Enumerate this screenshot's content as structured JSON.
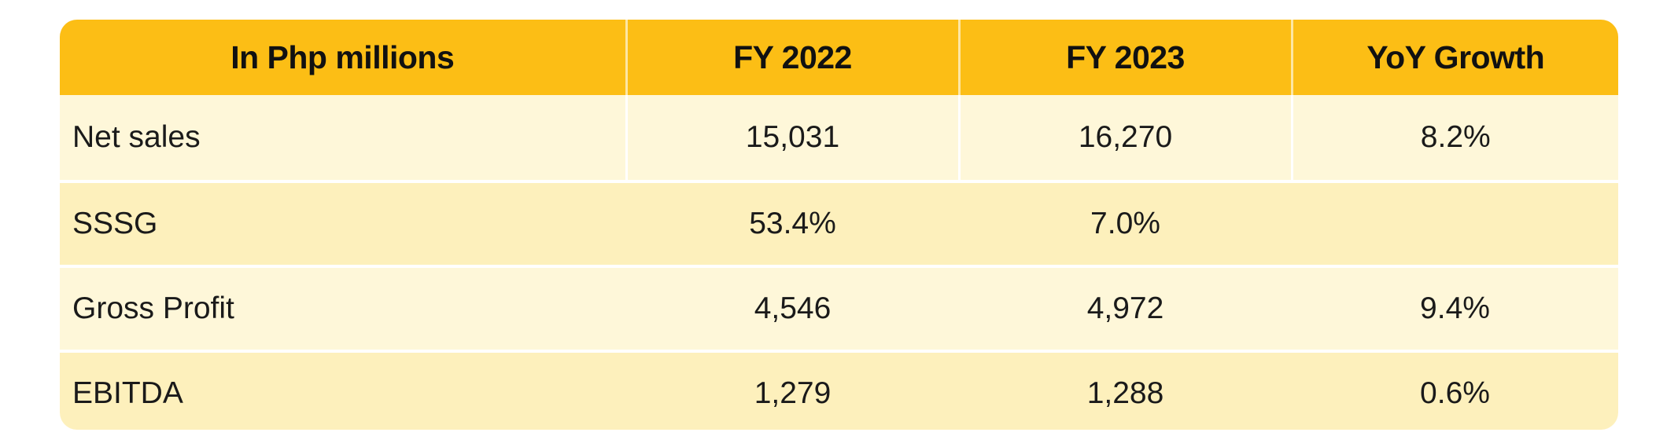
{
  "table": {
    "headers": [
      "In Php millions",
      "FY 2022",
      "FY 2023",
      "YoY Growth"
    ],
    "rows": [
      [
        "Net sales",
        "15,031",
        "16,270",
        "8.2%"
      ],
      [
        "SSSG",
        "53.4%",
        "7.0%",
        ""
      ],
      [
        "Gross Profit",
        "4,546",
        "4,972",
        "9.4%"
      ],
      [
        "EBITDA",
        "1,279",
        "1,288",
        "0.6%"
      ]
    ]
  },
  "colors": {
    "header_bg": "#fcbe15",
    "row_light_bg": "#fef7d9",
    "row_dark_bg": "#fdf0bc",
    "text": "#111111"
  }
}
